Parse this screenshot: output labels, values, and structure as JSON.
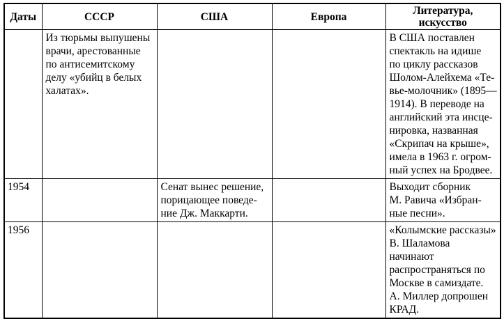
{
  "page": {
    "background": "#ffffff",
    "text_color": "#000000",
    "border_color": "#000000"
  },
  "table": {
    "columns": {
      "dates": "Даты",
      "ussr": "СССР",
      "usa": "США",
      "europe": "Европа",
      "literature": "Литература,\nискусство"
    },
    "rows": [
      {
        "date": "",
        "ussr": "Из тюрьмы выпушены\nврачи, арестованные\nпо антисемитскому\nделу «убийц в белых\nхалатах».",
        "usa": "",
        "europe": "",
        "literature": "В США поставлен\nспектакль на идише\nпо циклу рассказов\nШолом-Алейхема «Те-\nвье-молочник» (1895—\n1914). В переводе на\nанглийский эта инсце-\nнировка, названная\n«Скрипач на крыше»,\nимела в 1963 г. огром-\nный успех на Бродвее."
      },
      {
        "date": "1954",
        "ussr": "",
        "usa": "Сенат вынес решение,\nпорицающее поведе-\nние Дж. Маккарти.",
        "europe": "",
        "literature": "Выходит сборник\nМ. Равича «Избран-\nные песни»."
      },
      {
        "date": "1956",
        "ussr": "",
        "usa": "",
        "europe": "",
        "literature": "«Колымские рассказы»\nВ. Шаламова начинают\nраспространяться по\nМоскве в самиздате.\nА. Миллер допрошен\nКРАД."
      }
    ]
  }
}
